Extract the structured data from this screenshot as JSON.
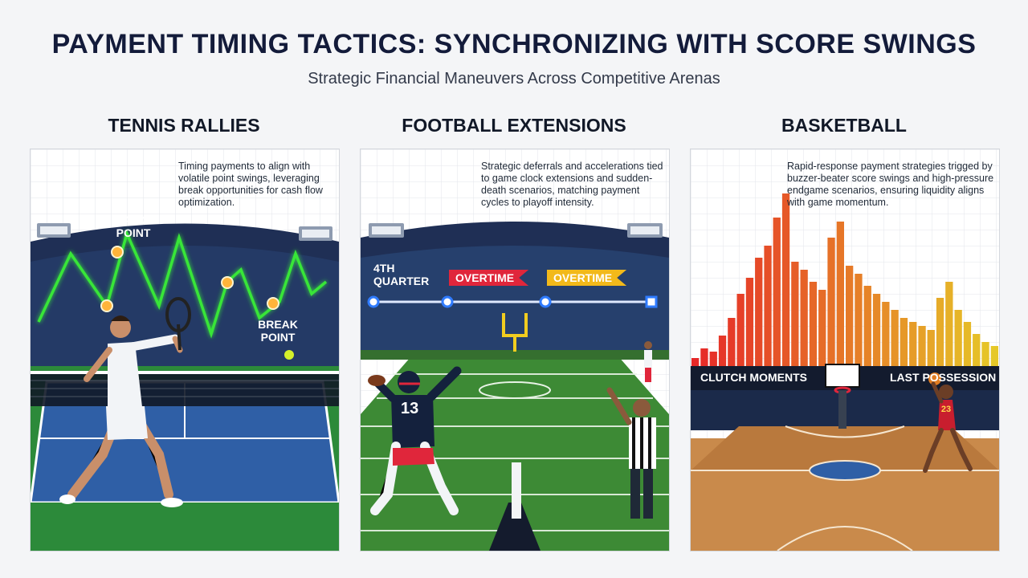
{
  "header": {
    "title": "PAYMENT TIMING TACTICS: SYNCHRONIZING WITH SCORE SWINGS",
    "subtitle": "Strategic Financial Maneuvers Across Competitive Arenas"
  },
  "panels": [
    {
      "heading": "TENNIS RALLIES",
      "description": "Timing payments to align with volatile point swings, leveraging break opportunities for cash flow optimization.",
      "callouts": [
        "MATCH POINT",
        "BREAK POINT"
      ]
    },
    {
      "heading": "FOOTBALL EXTENSIONS",
      "description": "Strategic deferrals and accelerations tied to game clock extensions and sudden-death scenarios, matching payment cycles to playoff intensity.",
      "timeline": [
        "4TH QUARTER",
        "OVERTIME",
        "OVERTIME"
      ],
      "jersey_number": "13"
    },
    {
      "heading": "BASKETBALL",
      "description": "Rapid-response payment strategies trigged by buzzer-beater score swings and high-pressure endgame scenarios, ensuring liquidity aligns with game momentum.",
      "strip_labels": [
        "CLUTCH MOMENTS",
        "LAST POSSESSION"
      ],
      "jersey_number": "23"
    }
  ],
  "colors": {
    "navy": "#131b3a",
    "swing_green": "#39e639",
    "court_blue": "#2f5fa6",
    "field_green": "#3d8a35",
    "wood": "#c98a4b",
    "overtime_red": "#e0263b",
    "overtime_gold": "#f2b91a"
  }
}
